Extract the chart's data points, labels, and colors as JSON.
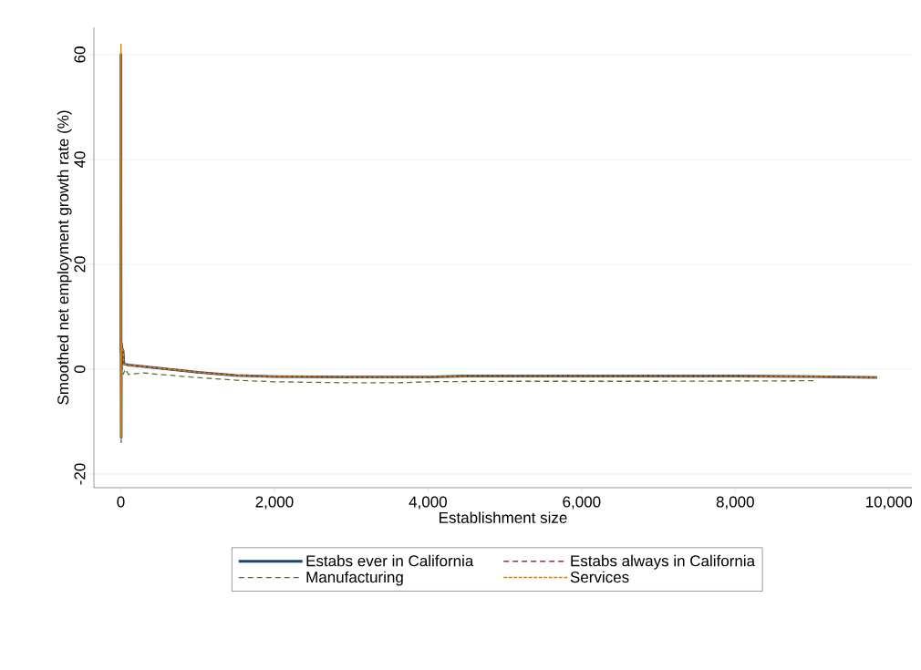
{
  "chart_data": {
    "type": "line",
    "xlabel": "Establishment size",
    "ylabel": "Smoothed net employment growth rate (%)",
    "xlim": [
      -350,
      10300
    ],
    "ylim": [
      -22.6,
      65.2
    ],
    "xticks": [
      0,
      {
        "value": 2000,
        "label": "2,000"
      },
      {
        "value": 4000,
        "label": "4,000"
      },
      {
        "value": 6000,
        "label": "6,000"
      },
      {
        "value": 8000,
        "label": "8,000"
      },
      {
        "value": 10000,
        "label": "10,000"
      }
    ],
    "yticks": [
      -20,
      0,
      20,
      40,
      60
    ],
    "grid": "y",
    "legend": "bottom",
    "series": [
      {
        "name": "Estabs ever in California",
        "color": "#1a476f",
        "line_style": "solid",
        "x": [
          1,
          2,
          3,
          5,
          8,
          15,
          30,
          40,
          100,
          500,
          1000,
          1500,
          2000,
          3000,
          4000,
          4500,
          6000,
          8000,
          9000,
          9850
        ],
        "values": [
          3,
          60,
          20,
          -13,
          5,
          4,
          3.5,
          1,
          0.8,
          0.2,
          -0.6,
          -1.2,
          -1.4,
          -1.5,
          -1.5,
          -1.3,
          -1.3,
          -1.3,
          -1.4,
          -1.6
        ]
      },
      {
        "name": "Estabs always in California",
        "color": "#90353b",
        "line_style": "dashed",
        "x": [
          1,
          2,
          3,
          5,
          8,
          15,
          30,
          40,
          100,
          500,
          1000,
          1500,
          2000,
          3000,
          4000,
          4500,
          6000,
          8000,
          9000,
          9850
        ],
        "values": [
          3,
          59,
          20,
          -12,
          5,
          4,
          3.5,
          1,
          0.8,
          0.2,
          -0.6,
          -1.2,
          -1.4,
          -1.5,
          -1.5,
          -1.3,
          -1.3,
          -1.3,
          -1.4,
          -1.6
        ]
      },
      {
        "name": "Manufacturing",
        "color": "#55752f",
        "line_style": "dashed",
        "x": [
          1,
          3,
          5,
          10,
          30,
          60,
          100,
          300,
          500,
          1000,
          1500,
          2000,
          3000,
          3600,
          4000,
          5000,
          7000,
          9050
        ],
        "values": [
          5,
          40,
          -14,
          2,
          -1,
          0,
          -1,
          -0.7,
          -1,
          -1.6,
          -2.1,
          -2.4,
          -2.6,
          -2.6,
          -2.4,
          -2.3,
          -2.3,
          -2.2
        ]
      },
      {
        "name": "Services",
        "color": "#e37e00",
        "line_style": "dotted",
        "x": [
          1,
          2,
          3,
          5,
          8,
          15,
          30,
          40,
          100,
          500,
          1000,
          1500,
          2000,
          3000,
          4000,
          4500,
          6000,
          8000,
          9000,
          9850
        ],
        "values": [
          3,
          62,
          20,
          -13,
          5,
          4,
          3.5,
          1,
          0.8,
          0.2,
          -0.6,
          -1.2,
          -1.4,
          -1.5,
          -1.5,
          -1.3,
          -1.3,
          -1.3,
          -1.4,
          -1.6
        ]
      }
    ]
  }
}
